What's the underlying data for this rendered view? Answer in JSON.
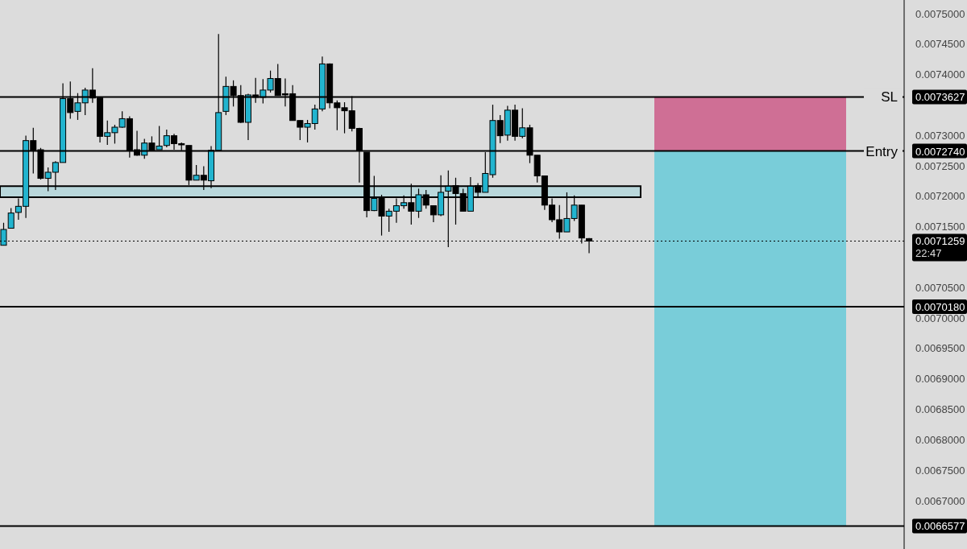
{
  "chart_data": {
    "type": "candlestick",
    "categories": [
      null,
      null,
      null,
      null,
      null,
      null,
      null,
      null,
      null,
      null,
      null,
      null,
      null,
      null,
      null,
      null,
      null,
      null,
      null,
      null,
      null,
      null,
      null,
      null,
      null,
      null,
      null,
      null,
      null,
      null,
      null,
      null,
      null,
      null,
      null,
      null,
      null,
      null,
      null,
      null,
      null,
      null,
      null,
      null,
      null,
      null,
      null,
      null,
      null,
      null,
      null,
      null,
      null,
      null,
      null,
      null,
      null,
      null,
      null,
      null,
      null,
      null,
      null,
      null,
      null,
      null,
      null,
      null,
      null,
      null,
      null,
      null,
      null,
      null,
      null,
      null,
      null,
      null,
      null,
      null,
      null,
      null,
      null,
      null,
      null,
      null,
      null,
      null,
      null,
      null,
      null,
      null,
      null,
      null,
      null,
      null,
      null,
      null,
      null,
      null,
      null,
      null,
      null,
      null,
      null,
      null,
      null,
      null,
      null,
      null,
      null,
      null,
      null,
      null,
      null,
      null,
      null,
      null,
      null,
      null,
      null,
      null
    ],
    "ohlc": [
      [
        0.007119,
        0.007156,
        0.007119,
        0.007145
      ],
      [
        0.007147,
        0.00718,
        0.007147,
        0.007172
      ],
      [
        0.007173,
        0.007196,
        0.007161,
        0.007183
      ],
      [
        0.007183,
        0.007299,
        0.007164,
        0.007291
      ],
      [
        0.007291,
        0.007312,
        0.007237,
        0.007275
      ],
      [
        0.007276,
        0.007279,
        0.007227,
        0.007229
      ],
      [
        0.007229,
        0.007247,
        0.007208,
        0.007239
      ],
      [
        0.007239,
        0.007257,
        0.00721,
        0.007255
      ],
      [
        0.007255,
        0.007385,
        0.007255,
        0.00736
      ],
      [
        0.00736,
        0.007388,
        0.007327,
        0.007337
      ],
      [
        0.007339,
        0.007369,
        0.007325,
        0.007353
      ],
      [
        0.007353,
        0.007378,
        0.007333,
        0.007374
      ],
      [
        0.007374,
        0.00741,
        0.007353,
        0.007361
      ],
      [
        0.007361,
        0.007361,
        0.007288,
        0.007298
      ],
      [
        0.007298,
        0.007324,
        0.007284,
        0.007304
      ],
      [
        0.007304,
        0.007317,
        0.007286,
        0.007313
      ],
      [
        0.007313,
        0.007339,
        0.007312,
        0.007327
      ],
      [
        0.007327,
        0.007331,
        0.007263,
        0.007275
      ],
      [
        0.007276,
        0.007307,
        0.007266,
        0.007267
      ],
      [
        0.007267,
        0.007294,
        0.007261,
        0.007287
      ],
      [
        0.007287,
        0.007298,
        0.007275,
        0.007275
      ],
      [
        0.007276,
        0.007315,
        0.007276,
        0.007282
      ],
      [
        0.007283,
        0.007309,
        0.00728,
        0.007299
      ],
      [
        0.007299,
        0.007302,
        0.007276,
        0.007286
      ],
      [
        0.007286,
        0.007288,
        0.007275,
        0.007284
      ],
      [
        0.007283,
        0.007283,
        0.007218,
        0.007226
      ],
      [
        0.007226,
        0.007251,
        0.007226,
        0.007234
      ],
      [
        0.007234,
        0.007249,
        0.00721,
        0.007226
      ],
      [
        0.007225,
        0.007282,
        0.007213,
        0.007275
      ],
      [
        0.007275,
        0.007466,
        0.007275,
        0.007337
      ],
      [
        0.007339,
        0.007396,
        0.007333,
        0.00738
      ],
      [
        0.00738,
        0.00739,
        0.007347,
        0.007365
      ],
      [
        0.007365,
        0.007382,
        0.00732,
        0.007321
      ],
      [
        0.007321,
        0.007368,
        0.007292,
        0.007366
      ],
      [
        0.007366,
        0.007394,
        0.007353,
        0.007362
      ],
      [
        0.007362,
        0.007392,
        0.007352,
        0.007374
      ],
      [
        0.007374,
        0.007406,
        0.00737,
        0.007393
      ],
      [
        0.007393,
        0.007417,
        0.007365,
        0.007365
      ],
      [
        0.007368,
        0.007393,
        0.007347,
        0.007366
      ],
      [
        0.007368,
        0.007382,
        0.007324,
        0.007324
      ],
      [
        0.007324,
        0.007324,
        0.007292,
        0.007313
      ],
      [
        0.007313,
        0.007325,
        0.007288,
        0.007319
      ],
      [
        0.007319,
        0.00735,
        0.007309,
        0.007343
      ],
      [
        0.007343,
        0.007429,
        0.007339,
        0.007417
      ],
      [
        0.007417,
        0.007418,
        0.007344,
        0.007353
      ],
      [
        0.007353,
        0.007357,
        0.007308,
        0.007345
      ],
      [
        0.007345,
        0.007354,
        0.007303,
        0.00734
      ],
      [
        0.00734,
        0.007364,
        0.007306,
        0.007311
      ],
      [
        0.007311,
        0.007312,
        0.007222,
        0.007274
      ],
      [
        0.007272,
        0.007272,
        0.007165,
        0.007176
      ],
      [
        0.007176,
        0.007233,
        0.007175,
        0.007196
      ],
      [
        0.007196,
        0.007202,
        0.007135,
        0.007167
      ],
      [
        0.007167,
        0.007179,
        0.007141,
        0.007175
      ],
      [
        0.007175,
        0.007196,
        0.007156,
        0.007184
      ],
      [
        0.007184,
        0.007201,
        0.007179,
        0.007189
      ],
      [
        0.007189,
        0.00722,
        0.007153,
        0.007175
      ],
      [
        0.007175,
        0.007212,
        0.007164,
        0.007202
      ],
      [
        0.007202,
        0.00721,
        0.007179,
        0.007185
      ],
      [
        0.007184,
        0.007184,
        0.007157,
        0.007169
      ],
      [
        0.007169,
        0.007234,
        0.007167,
        0.007206
      ],
      [
        0.007208,
        0.007242,
        0.007116,
        0.007216
      ],
      [
        0.007217,
        0.00723,
        0.007153,
        0.007204
      ],
      [
        0.007204,
        0.007212,
        0.007175,
        0.007175
      ],
      [
        0.007175,
        0.007231,
        0.007175,
        0.007216
      ],
      [
        0.007217,
        0.007221,
        0.007198,
        0.007206
      ],
      [
        0.007206,
        0.007272,
        0.007206,
        0.007237
      ],
      [
        0.007235,
        0.00735,
        0.00723,
        0.007324
      ],
      [
        0.007324,
        0.007333,
        0.007287,
        0.007299
      ],
      [
        0.0073,
        0.007348,
        0.007291,
        0.007341
      ],
      [
        0.007341,
        0.00735,
        0.007291,
        0.007298
      ],
      [
        0.007298,
        0.007344,
        0.007295,
        0.007312
      ],
      [
        0.007312,
        0.007317,
        0.007254,
        0.007267
      ],
      [
        0.007267,
        0.007267,
        0.007222,
        0.007233
      ],
      [
        0.007233,
        0.007233,
        0.007177,
        0.007185
      ],
      [
        0.007185,
        0.007196,
        0.007157,
        0.007161
      ],
      [
        0.007161,
        0.007185,
        0.00713,
        0.007141
      ],
      [
        0.007141,
        0.007206,
        0.007141,
        0.007163
      ],
      [
        0.007163,
        0.007201,
        0.007159,
        0.007185
      ],
      [
        0.007185,
        0.007185,
        0.007122,
        0.007131
      ],
      [
        0.00713,
        0.007131,
        0.007106,
        0.007126
      ],
      null,
      null,
      null,
      null,
      null,
      null,
      null,
      null,
      null,
      null,
      null,
      null,
      null,
      null,
      null,
      null,
      null,
      null,
      null,
      null,
      null,
      null,
      null,
      null,
      null,
      null,
      null,
      null,
      null,
      null,
      null,
      null,
      null,
      null,
      null,
      null,
      null,
      null,
      null,
      null,
      null,
      null
    ],
    "colors": [
      "#22b4cf",
      "#22b4cf",
      "#22b4cf",
      "#22b4cf",
      "#000000",
      "#000000",
      "#22b4cf",
      "#22b4cf",
      "#22b4cf",
      "#000000",
      "#22b4cf",
      "#22b4cf",
      "#000000",
      "#000000",
      "#22b4cf",
      "#22b4cf",
      "#22b4cf",
      "#000000",
      "#000000",
      "#22b4cf",
      "#000000",
      "#22b4cf",
      "#22b4cf",
      "#000000",
      "#000000",
      "#000000",
      "#22b4cf",
      "#000000",
      "#22b4cf",
      "#22b4cf",
      "#22b4cf",
      "#000000",
      "#000000",
      "#22b4cf",
      "#000000",
      "#22b4cf",
      "#22b4cf",
      "#000000",
      "#000000",
      "#000000",
      "#000000",
      "#22b4cf",
      "#22b4cf",
      "#22b4cf",
      "#000000",
      "#000000",
      "#000000",
      "#000000",
      "#000000",
      "#000000",
      "#22b4cf",
      "#000000",
      "#22b4cf",
      "#22b4cf",
      "#22b4cf",
      "#000000",
      "#22b4cf",
      "#000000",
      "#000000",
      "#22b4cf",
      "#22b4cf",
      "#000000",
      "#000000",
      "#22b4cf",
      "#000000",
      "#22b4cf",
      "#22b4cf",
      "#000000",
      "#22b4cf",
      "#000000",
      "#22b4cf",
      "#000000",
      "#000000",
      "#000000",
      "#000000",
      "#000000",
      "#22b4cf",
      "#22b4cf",
      "#000000",
      "#000000",
      null,
      null,
      null,
      null,
      null,
      null,
      null,
      null,
      null,
      null,
      null,
      null,
      null,
      null,
      null,
      null,
      null,
      null,
      null,
      null,
      null,
      null,
      null,
      null,
      null,
      null,
      null,
      null,
      null,
      null,
      null,
      null,
      null,
      null,
      null,
      null,
      null,
      null,
      null,
      null,
      null,
      null
    ],
    "ylim": [
      0.00662,
      0.007522
    ],
    "yticks": [
      {
        "value": 0.0067,
        "label": "0.0067000"
      },
      {
        "value": 0.00675,
        "label": "0.0067500"
      },
      {
        "value": 0.0068,
        "label": "0.0068000"
      },
      {
        "value": 0.00685,
        "label": "0.0068500"
      },
      {
        "value": 0.0069,
        "label": "0.0069000"
      },
      {
        "value": 0.00695,
        "label": "0.0069500"
      },
      {
        "value": 0.007,
        "label": "0.0070000"
      },
      {
        "value": 0.00705,
        "label": "0.0070500"
      },
      {
        "value": 0.00715,
        "label": "0.0071500"
      },
      {
        "value": 0.0072,
        "label": "0.0072000"
      },
      {
        "value": 0.00725,
        "label": "0.0072500"
      },
      {
        "value": 0.0073,
        "label": "0.0073000"
      },
      {
        "value": 0.0074,
        "label": "0.0074000"
      },
      {
        "value": 0.00745,
        "label": "0.0074500"
      },
      {
        "value": 0.0075,
        "label": "0.0075000"
      },
      {
        "value": 0.0073627,
        "label": "0.0073627"
      },
      {
        "value": 0.007274,
        "label": "0.0072740"
      },
      {
        "value": 0.0071259,
        "label": "0.0071259"
      },
      {
        "value": 0.007018,
        "label": "0.0070180"
      },
      {
        "value": 0.0066577,
        "label": "0.0066577"
      }
    ],
    "annotations": [
      "22:47"
    ],
    "ref_lines": [
      {
        "axis": "y",
        "value": 0.0073627,
        "label": "SL",
        "color": "#000000",
        "line_style": "solid"
      },
      {
        "axis": "y",
        "value": 0.007274,
        "label": "Entry",
        "color": "#000000",
        "line_style": "solid"
      },
      {
        "axis": "y",
        "value": 0.0071259,
        "label": null,
        "color": "#000000",
        "line_style": "dotted"
      },
      {
        "axis": "y",
        "value": 0.007018,
        "label": null,
        "color": "#000000",
        "line_style": "solid"
      },
      {
        "axis": "y",
        "value": 0.0066577,
        "label": null,
        "color": "#000000",
        "line_style": "solid"
      }
    ],
    "bands": [
      {
        "axis": "y",
        "from": 0.007198,
        "to": 0.007216,
        "color": "#b9d7db"
      },
      {
        "axis": "y",
        "from": 0.007274,
        "to": 0.0073627,
        "color": "#cf6f95"
      },
      {
        "axis": "y",
        "from": 0.0066577,
        "to": 0.007274,
        "color": "#79cdd9"
      }
    ]
  }
}
